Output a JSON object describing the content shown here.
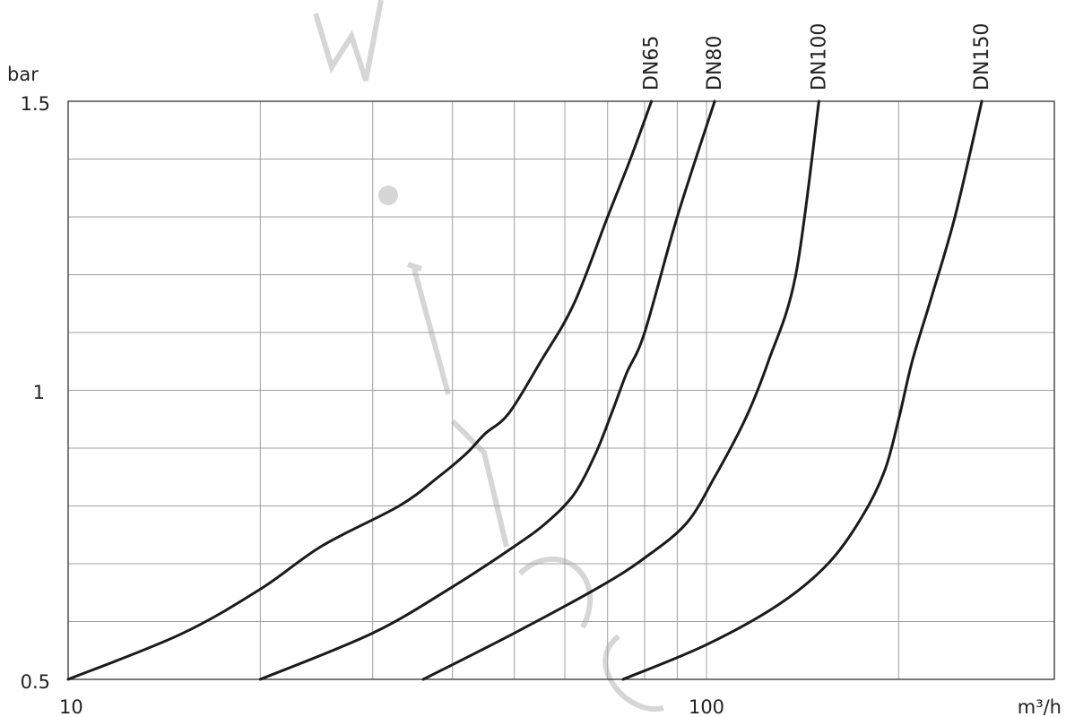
{
  "chart_data": {
    "type": "line",
    "title": "",
    "xlabel": "m³/h",
    "ylabel": "bar",
    "x_scale": "log",
    "xlim": [
      10,
      270
    ],
    "ylim": [
      0.5,
      1.5
    ],
    "x_tick_labels": [
      "10",
      "100"
    ],
    "y_tick_labels": [
      "0.5",
      "1",
      "1.5"
    ],
    "grid": true,
    "legend": "series labels at top end of each curve (rotated)",
    "series": [
      {
        "name": "DN65",
        "x": [
          10,
          15,
          20,
          25,
          33,
          38,
          42,
          45,
          49,
          55,
          62,
          70,
          76,
          82
        ],
        "y": [
          0.5,
          0.578,
          0.656,
          0.731,
          0.8,
          0.85,
          0.89,
          0.925,
          0.96,
          1.05,
          1.15,
          1.3,
          1.4,
          1.5
        ]
      },
      {
        "name": "DN80",
        "x": [
          20,
          30,
          40,
          50,
          56,
          62,
          67,
          71,
          75,
          80,
          90,
          103
        ],
        "y": [
          0.5,
          0.58,
          0.66,
          0.73,
          0.77,
          0.82,
          0.89,
          0.96,
          1.03,
          1.1,
          1.3,
          1.5
        ]
      },
      {
        "name": "DN100",
        "x": [
          36,
          50,
          68,
          80,
          93,
          103,
          115,
          125,
          138,
          150
        ],
        "y": [
          0.5,
          0.58,
          0.66,
          0.71,
          0.77,
          0.85,
          0.95,
          1.05,
          1.2,
          1.5
        ]
      },
      {
        "name": "DN150",
        "x": [
          74,
          100,
          130,
          155,
          175,
          190,
          200,
          210,
          225,
          245,
          270
        ],
        "y": [
          0.5,
          0.56,
          0.63,
          0.7,
          0.78,
          0.86,
          0.95,
          1.05,
          1.16,
          1.3,
          1.5
        ]
      }
    ]
  }
}
